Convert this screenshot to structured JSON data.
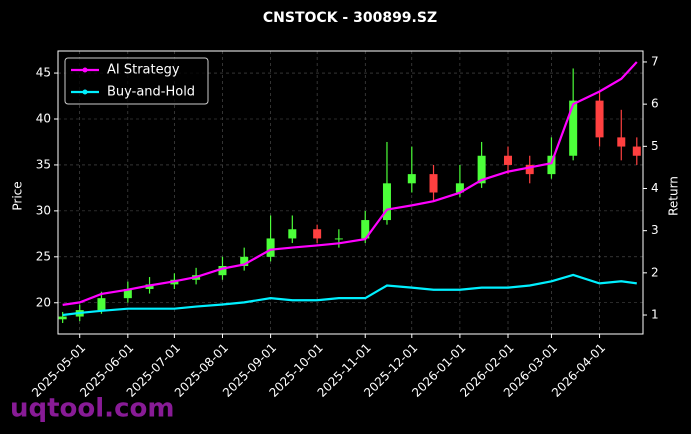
{
  "chart_data": {
    "type": "candlestick",
    "title": "CNSTOCK - 300899.SZ",
    "ylabel": "Price",
    "y2label": "Return",
    "watermark": "uqtool.com",
    "x": [
      "2025-04-20",
      "2025-05-01",
      "2025-05-15",
      "2025-06-01",
      "2025-06-15",
      "2025-07-01",
      "2025-07-15",
      "2025-08-01",
      "2025-08-15",
      "2025-09-01",
      "2025-09-15",
      "2025-10-01",
      "2025-10-15",
      "2025-11-01",
      "2025-11-15",
      "2025-12-01",
      "2025-12-15",
      "2026-01-01",
      "2026-01-15",
      "2026-02-01",
      "2026-02-15",
      "2026-03-01",
      "2026-03-15",
      "2026-04-01",
      "2026-04-15",
      "2026-04-25"
    ],
    "candles": {
      "up_color": "#4cff3a",
      "down_color": "#ff4040",
      "open": [
        18.2,
        18.5,
        19.2,
        20.5,
        21.5,
        22,
        22.5,
        23,
        24,
        25,
        27,
        28,
        27,
        27,
        29,
        33,
        34,
        32,
        33,
        36,
        35,
        34,
        36,
        42,
        38,
        37
      ],
      "high": [
        19,
        19.8,
        21.2,
        22.3,
        22.8,
        23.2,
        23.8,
        25,
        26,
        29.5,
        29.5,
        28.5,
        28,
        30,
        37.5,
        37,
        35,
        35,
        37.5,
        37,
        36,
        38,
        45.5,
        43,
        41,
        38
      ],
      "low": [
        17.8,
        18,
        18.8,
        20,
        21,
        21.5,
        22,
        22.5,
        23.5,
        24.5,
        26.5,
        26.5,
        26,
        26.5,
        28.5,
        32,
        31,
        31.5,
        32.5,
        34,
        33,
        33.5,
        35.5,
        37,
        35.5,
        35
      ],
      "close": [
        18.5,
        19.2,
        20.5,
        21.5,
        22,
        22.5,
        23,
        24,
        25,
        27,
        28,
        27,
        27,
        29,
        33,
        34,
        32,
        33,
        36,
        35,
        34,
        36,
        42,
        38,
        37,
        36
      ]
    },
    "series": [
      {
        "name": "AI Strategy",
        "color": "#ff00ff",
        "axis": "y2",
        "values": [
          1.24,
          1.3,
          1.5,
          1.6,
          1.7,
          1.8,
          1.9,
          2.1,
          2.2,
          2.55,
          2.6,
          2.65,
          2.7,
          2.8,
          3.5,
          3.6,
          3.7,
          3.9,
          4.2,
          4.4,
          4.5,
          4.6,
          6.0,
          6.3,
          6.6,
          7.0
        ]
      },
      {
        "name": "Buy-and-Hold",
        "color": "#00f0ff",
        "axis": "y2",
        "values": [
          1.0,
          1.05,
          1.1,
          1.15,
          1.15,
          1.15,
          1.2,
          1.25,
          1.3,
          1.4,
          1.35,
          1.35,
          1.4,
          1.4,
          1.7,
          1.65,
          1.6,
          1.6,
          1.65,
          1.65,
          1.7,
          1.8,
          1.95,
          1.75,
          1.8,
          1.75
        ]
      }
    ],
    "xlim": [
      "2025-04-17",
      "2026-04-29"
    ],
    "xticks": [
      "2025-05-01",
      "2025-06-01",
      "2025-07-01",
      "2025-08-01",
      "2025-09-01",
      "2025-10-01",
      "2025-11-01",
      "2025-12-01",
      "2026-01-01",
      "2026-02-01",
      "2026-03-01",
      "2026-04-01"
    ],
    "ylim": [
      16.6,
      47.4
    ],
    "yticks": [
      20,
      25,
      30,
      35,
      40,
      45
    ],
    "y2lim": [
      0.55,
      7.26
    ],
    "y2ticks": [
      1,
      2,
      3,
      4,
      5,
      6,
      7
    ],
    "grid": true,
    "legend_loc": "upper left"
  }
}
